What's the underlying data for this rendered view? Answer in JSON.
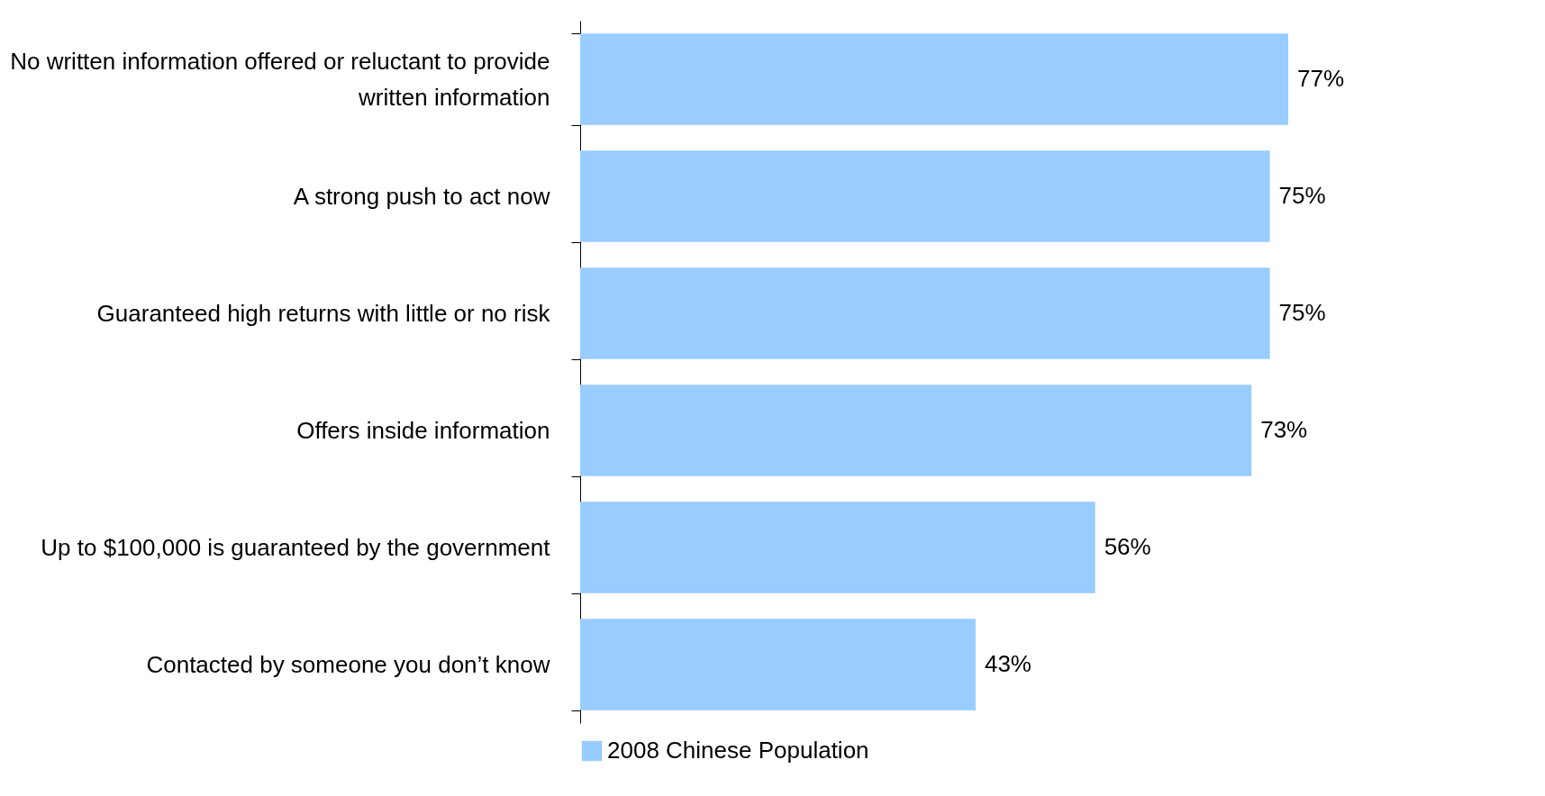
{
  "chart_data": {
    "type": "bar",
    "orientation": "horizontal",
    "categories": [
      "No written information offered or reluctant to provide written information",
      "A strong push to act now",
      "Guaranteed high returns with little or no risk",
      "Offers inside information",
      "Up to $100,000 is guaranteed by the government",
      "Contacted by someone you don’t know"
    ],
    "series": [
      {
        "name": "2008 Chinese Population",
        "color": "#99ccff",
        "values": [
          77,
          75,
          75,
          73,
          56,
          43
        ],
        "value_labels": [
          "77%",
          "75%",
          "75%",
          "73%",
          "56%",
          "43%"
        ]
      }
    ],
    "legend": "bottom",
    "grid": false
  }
}
